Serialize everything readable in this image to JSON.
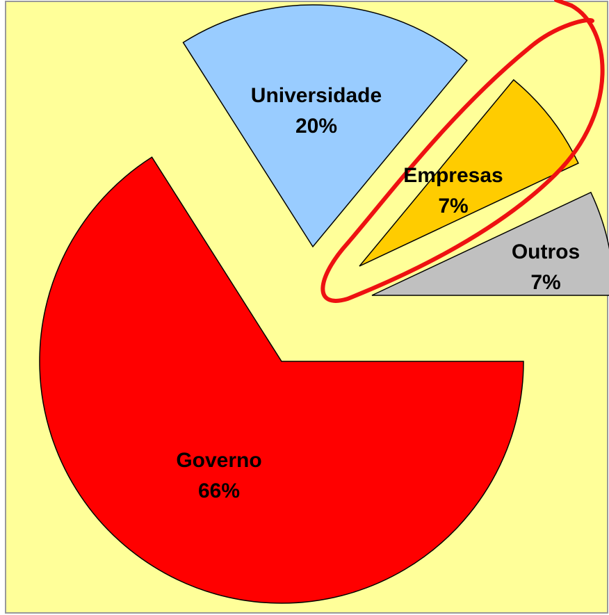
{
  "chart_data": {
    "type": "pie",
    "categories": [
      "Governo",
      "Universidade",
      "Empresas",
      "Outros"
    ],
    "values": [
      66,
      20,
      7,
      7
    ],
    "value_labels": [
      "66%",
      "20%",
      "7%",
      "7%"
    ],
    "colors": [
      "#ff0000",
      "#99ccff",
      "#ffcc00",
      "#c0c0c0"
    ]
  }
}
